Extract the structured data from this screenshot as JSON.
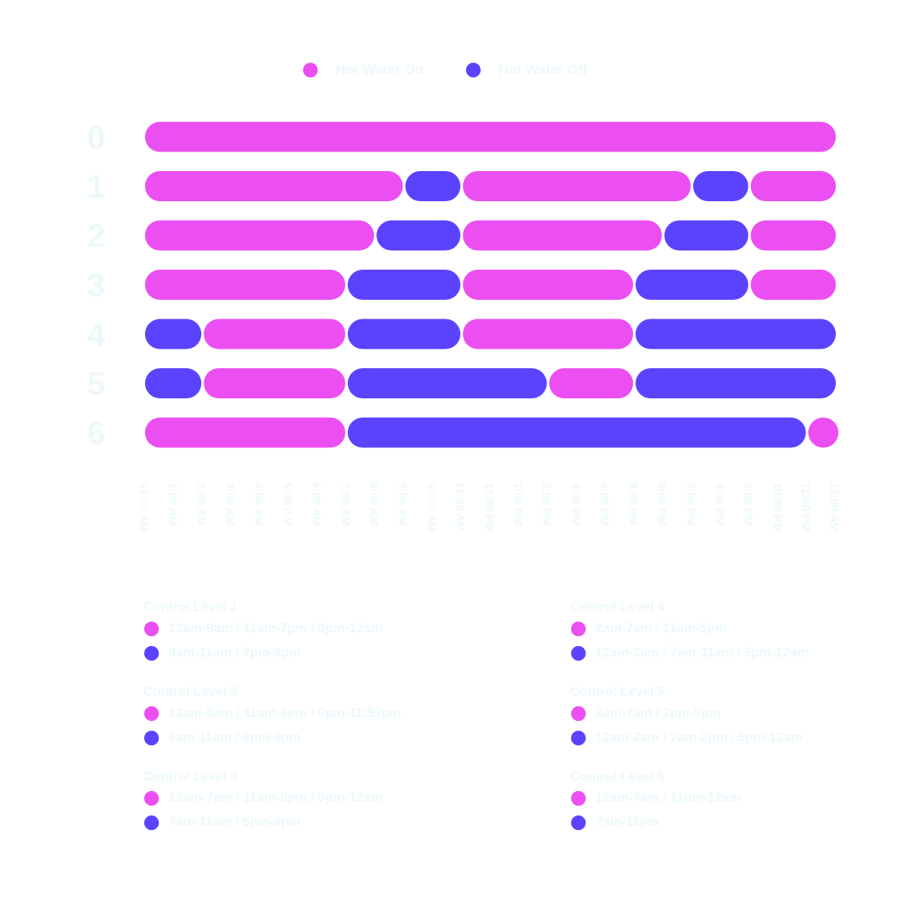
{
  "colors": {
    "on": "#ec4ff1",
    "off": "#5b43fe",
    "label": "#ecf8fb"
  },
  "legend": {
    "on_label": "Hot Water On",
    "off_label": "Hot Water Off"
  },
  "chart_data": {
    "type": "timeline",
    "title": "",
    "x_axis": {
      "unit": "hour",
      "range": [
        0,
        24
      ],
      "tick_labels": [
        "12:00 AM",
        "1:00 AM",
        "2:00 AM",
        "3:00 AM",
        "4:00 AM",
        "5:00 AM",
        "6:00 AM",
        "7:00 AM",
        "8:00 AM",
        "9:00 AM",
        "10:00 AM",
        "11:00 AM",
        "12:00 PM",
        "1:00 PM",
        "2:00 PM",
        "3:00 PM",
        "4:00 PM",
        "5:00 PM",
        "6:00 PM",
        "7:00 PM",
        "8:00 PM",
        "9:00 PM",
        "10:00 PM",
        "11:00 PM",
        "12:00 AM"
      ]
    },
    "y_axis": {
      "categories": [
        "0",
        "1",
        "2",
        "3",
        "4",
        "5",
        "6"
      ]
    },
    "series": [
      {
        "level": "0",
        "segments": [
          {
            "state": "on",
            "start": 0,
            "end": 24
          }
        ]
      },
      {
        "level": "1",
        "segments": [
          {
            "state": "on",
            "start": 0,
            "end": 9
          },
          {
            "state": "off",
            "start": 9,
            "end": 11
          },
          {
            "state": "on",
            "start": 11,
            "end": 19
          },
          {
            "state": "off",
            "start": 19,
            "end": 21
          },
          {
            "state": "on",
            "start": 21,
            "end": 24
          }
        ]
      },
      {
        "level": "2",
        "segments": [
          {
            "state": "on",
            "start": 0,
            "end": 8
          },
          {
            "state": "off",
            "start": 8,
            "end": 11
          },
          {
            "state": "on",
            "start": 11,
            "end": 18
          },
          {
            "state": "off",
            "start": 18,
            "end": 21
          },
          {
            "state": "on",
            "start": 21,
            "end": 24
          }
        ]
      },
      {
        "level": "3",
        "segments": [
          {
            "state": "on",
            "start": 0,
            "end": 7
          },
          {
            "state": "off",
            "start": 7,
            "end": 11
          },
          {
            "state": "on",
            "start": 11,
            "end": 17
          },
          {
            "state": "off",
            "start": 17,
            "end": 21
          },
          {
            "state": "on",
            "start": 21,
            "end": 24
          }
        ]
      },
      {
        "level": "4",
        "segments": [
          {
            "state": "off",
            "start": 0,
            "end": 2
          },
          {
            "state": "on",
            "start": 2,
            "end": 7
          },
          {
            "state": "off",
            "start": 7,
            "end": 11
          },
          {
            "state": "on",
            "start": 11,
            "end": 17
          },
          {
            "state": "off",
            "start": 17,
            "end": 24
          }
        ]
      },
      {
        "level": "5",
        "segments": [
          {
            "state": "off",
            "start": 0,
            "end": 2
          },
          {
            "state": "on",
            "start": 2,
            "end": 7
          },
          {
            "state": "off",
            "start": 7,
            "end": 14
          },
          {
            "state": "on",
            "start": 14,
            "end": 17
          },
          {
            "state": "off",
            "start": 17,
            "end": 24
          }
        ]
      },
      {
        "level": "6",
        "segments": [
          {
            "state": "on",
            "start": 0,
            "end": 7
          },
          {
            "state": "off",
            "start": 7,
            "end": 23
          },
          {
            "state": "on",
            "start": 23,
            "end": 24
          }
        ]
      }
    ]
  },
  "control_levels": [
    {
      "title": "Control Level 1",
      "on": "12am-9am / 11am-7pm / 9pm-12am",
      "off": "9am-11am / 7pm-9pm"
    },
    {
      "title": "Control Level 2",
      "on": "12am-8am / 11am-6pm / 9pm-11:59pm",
      "off": "8am-11am / 6pm-9pm"
    },
    {
      "title": "Control Level 3",
      "on": "12am-7am / 11am-5pm / 9pm-12am",
      "off": "7am-11am / 5pm-9pm"
    },
    {
      "title": "Control Level 4",
      "on": "2am-7am / 11am-5pm",
      "off": "12am-2am / 7am-11am / 5pm-12am"
    },
    {
      "title": "Control Level 5",
      "on": "2am-7am / 2pm-5pm",
      "off": "12am-2am / 7am-2pm / 5pm-12am"
    },
    {
      "title": "Control Level 6",
      "on": "12am-7am / 11pm-12am",
      "off": "7am-11pm"
    }
  ]
}
